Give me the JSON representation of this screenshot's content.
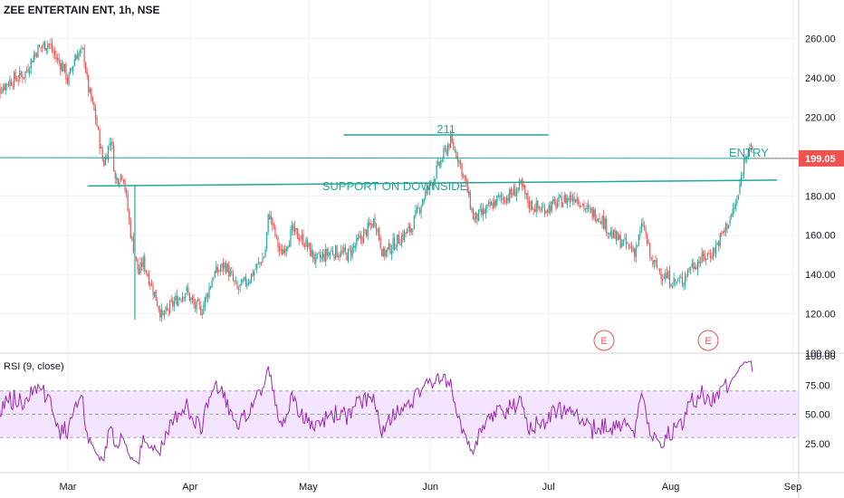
{
  "header": {
    "symbol": "ZEE ENTERTAIN ENT, 1h, NSE"
  },
  "colors": {
    "up": "#26a69a",
    "down": "#ef5350",
    "grid": "#eef0f3",
    "axis": "#d1d4dc",
    "annotation": "#26a69a",
    "rsi_line": "#9c27b0",
    "rsi_band": "#f3e5ff",
    "earnings": "#ef5350",
    "price_tag": "#ef5350"
  },
  "chart_data": [
    {
      "type": "candlestick",
      "title": "ZEE ENTERTAIN ENT, 1h, NSE",
      "x_ticks": [
        "Mar",
        "Apr",
        "May",
        "Jun",
        "Jul",
        "Aug",
        "Sep"
      ],
      "y_ticks": [
        "260.00",
        "240.00",
        "220.00",
        "200.00",
        "180.00",
        "160.00",
        "140.00",
        "120.00",
        "100.00"
      ],
      "ylim": [
        100,
        270
      ],
      "last_price": "199.05",
      "close_path": [
        [
          "Feb 10",
          232
        ],
        [
          "Feb 14",
          238
        ],
        [
          "Feb 18",
          242
        ],
        [
          "Feb 21",
          254
        ],
        [
          "Feb 24",
          258
        ],
        [
          "Feb 26",
          250
        ],
        [
          "Feb 28",
          245
        ],
        [
          "Mar 1",
          238
        ],
        [
          "Mar 3",
          252
        ],
        [
          "Mar 5",
          253
        ],
        [
          "Mar 6",
          236
        ],
        [
          "Mar 8",
          220
        ],
        [
          "Mar 10",
          196
        ],
        [
          "Mar 12",
          210
        ],
        [
          "Mar 13",
          188
        ],
        [
          "Mar 15",
          192
        ],
        [
          "Mar 16",
          176
        ],
        [
          "Mar 17",
          160
        ],
        [
          "Mar 19",
          140
        ],
        [
          "Mar 20",
          147
        ],
        [
          "Mar 23",
          130
        ],
        [
          "Mar 25",
          118
        ],
        [
          "Mar 28",
          126
        ],
        [
          "Mar 31",
          132
        ],
        [
          "Apr 2",
          124
        ],
        [
          "Apr 4",
          122
        ],
        [
          "Apr 7",
          140
        ],
        [
          "Apr 10",
          145
        ],
        [
          "Apr 13",
          132
        ],
        [
          "Apr 16",
          138
        ],
        [
          "Apr 20",
          150
        ],
        [
          "Apr 21",
          172
        ],
        [
          "Apr 24",
          150
        ],
        [
          "Apr 27",
          162
        ],
        [
          "Apr 30",
          157
        ],
        [
          "May 3",
          147
        ],
        [
          "May 7",
          152
        ],
        [
          "May 11",
          150
        ],
        [
          "May 15",
          160
        ],
        [
          "May 18",
          168
        ],
        [
          "May 20",
          150
        ],
        [
          "May 24",
          158
        ],
        [
          "May 27",
          163
        ],
        [
          "May 30",
          178
        ],
        [
          "Jun 2",
          190
        ],
        [
          "Jun 4",
          199
        ],
        [
          "Jun 6",
          208
        ],
        [
          "Jun 8",
          200
        ],
        [
          "Jun 10",
          186
        ],
        [
          "Jun 12",
          168
        ],
        [
          "Jun 15",
          172
        ],
        [
          "Jun 18",
          178
        ],
        [
          "Jun 21",
          180
        ],
        [
          "Jun 24",
          185
        ],
        [
          "Jun 26",
          176
        ],
        [
          "Jun 29",
          173
        ],
        [
          "Jul 2",
          175
        ],
        [
          "Jul 5",
          178
        ],
        [
          "Jul 8",
          180
        ],
        [
          "Jul 11",
          172
        ],
        [
          "Jul 14",
          170
        ],
        [
          "Jul 17",
          160
        ],
        [
          "Jul 20",
          156
        ],
        [
          "Jul 23",
          152
        ],
        [
          "Jul 25",
          166
        ],
        [
          "Jul 27",
          147
        ],
        [
          "Jul 30",
          140
        ],
        [
          "Aug 2",
          136
        ],
        [
          "Aug 4",
          137
        ],
        [
          "Aug 6",
          144
        ],
        [
          "Aug 9",
          148
        ],
        [
          "Aug 12",
          152
        ],
        [
          "Aug 14",
          160
        ],
        [
          "Aug 16",
          168
        ],
        [
          "Aug 18",
          178
        ],
        [
          "Aug 20",
          202
        ],
        [
          "Aug 21",
          206
        ],
        [
          "Aug 22",
          199
        ]
      ],
      "annotations": {
        "resistance_label": "211",
        "support_label": "SUPPORT ON DOWNSIDE",
        "entry_label": "ENTRY"
      },
      "earnings_markers": [
        "E",
        "E"
      ]
    },
    {
      "type": "line",
      "title": "RSI (9, close)",
      "y_ticks": [
        "100.00",
        "75.00",
        "50.00",
        "25.00"
      ],
      "ylim": [
        0,
        100
      ],
      "band": [
        30,
        70
      ],
      "x_ticks": [
        "Mar",
        "Apr",
        "May",
        "Jun",
        "Jul",
        "Aug",
        "Sep"
      ]
    }
  ]
}
